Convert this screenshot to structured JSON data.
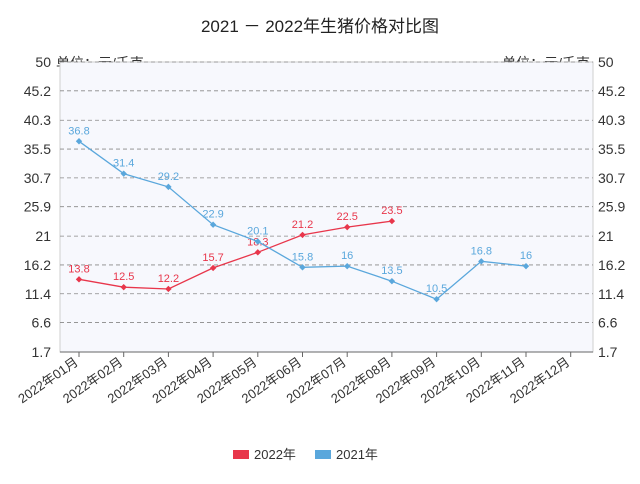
{
  "chart_data": {
    "type": "line",
    "title": "2021 － 2022年生猪价格对比图",
    "unit_label_left": "单位：元/千克",
    "unit_label_right": "单位：元/千克",
    "categories": [
      "2022年01月",
      "2022年02月",
      "2022年03月",
      "2022年04月",
      "2022年05月",
      "2022年06月",
      "2022年07月",
      "2022年08月",
      "2022年09月",
      "2022年10月",
      "2022年11月",
      "2022年12月"
    ],
    "yticks": [
      "1.7",
      "6.6",
      "11.4",
      "16.2",
      "21",
      "25.9",
      "30.7",
      "35.5",
      "40.3",
      "45.2",
      "50"
    ],
    "ylim": [
      1.7,
      50
    ],
    "grid": true,
    "legend_position": "bottom",
    "series": [
      {
        "name": "2022年",
        "color": "#e8364b",
        "values": [
          13.8,
          12.5,
          12.2,
          15.7,
          18.3,
          21.2,
          22.5,
          23.5,
          null,
          null,
          null,
          null
        ],
        "labels": [
          "13.8",
          "12.5",
          "12.2",
          "15.7",
          "18.3",
          "21.2",
          "22.5",
          "23.5",
          "",
          "",
          "",
          ""
        ]
      },
      {
        "name": "2021年",
        "color": "#5aa7dc",
        "values": [
          36.8,
          31.4,
          29.2,
          22.9,
          20.1,
          15.8,
          16,
          13.5,
          10.5,
          16.8,
          16,
          null
        ],
        "labels": [
          "36.8",
          "31.4",
          "29.2",
          "22.9",
          "20.1",
          "15.8",
          "16",
          "13.5",
          "10.5",
          "16.8",
          "16",
          ""
        ]
      }
    ]
  }
}
